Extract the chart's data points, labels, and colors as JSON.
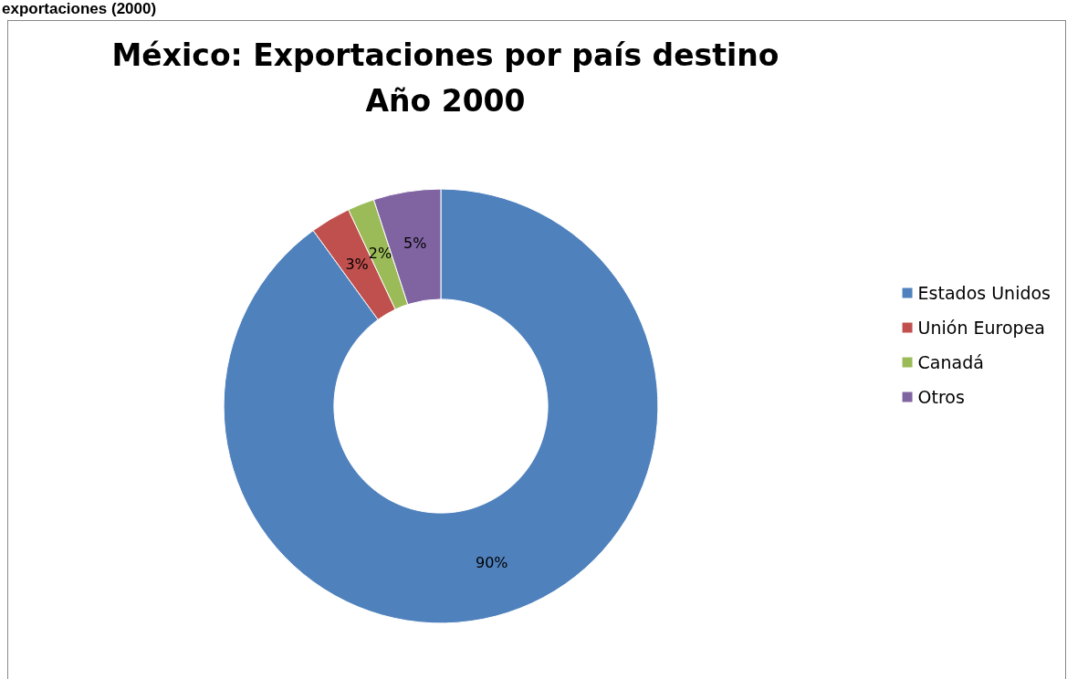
{
  "chart_data": {
    "type": "donut",
    "title": "México: Exportaciones por país destino\nAño 2000",
    "annotations": [
      "exportaciones (2000)"
    ],
    "categories": [
      "Estados Unidos",
      "Unión Europea",
      "Canadá",
      "Otros"
    ],
    "values": [
      90,
      3,
      2,
      5
    ],
    "value_labels": [
      "90%",
      "3%",
      "2%",
      "5%"
    ],
    "colors": [
      "#4f81bd",
      "#c0504d",
      "#9bbb59",
      "#8064a2"
    ],
    "legend": "right"
  }
}
